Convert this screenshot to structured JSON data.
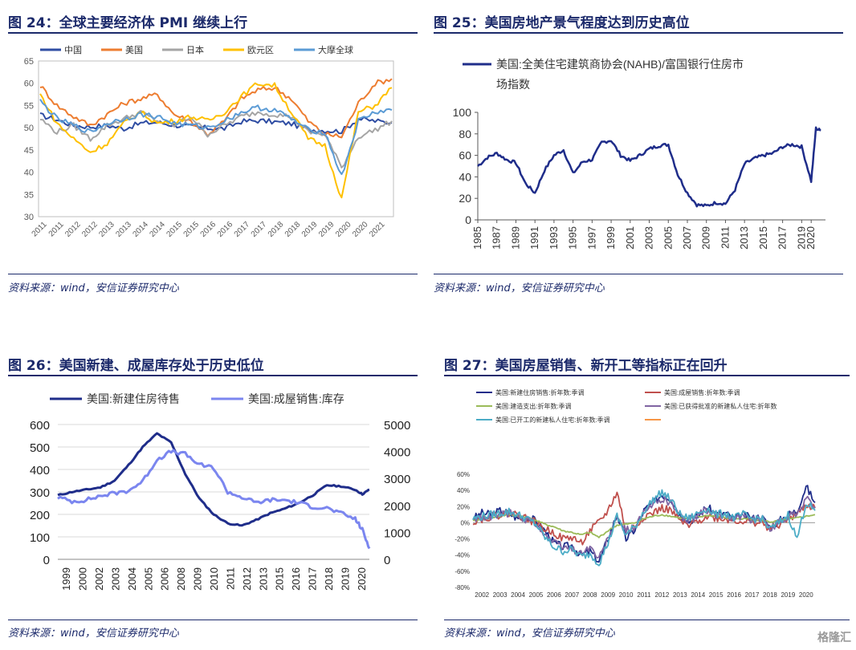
{
  "panels": [
    {
      "id": "fig24",
      "title": "图 24：全球主要经济体 PMI 继续上行",
      "source": "资料来源：wind，安信证券研究中心"
    },
    {
      "id": "fig25",
      "title": "图 25：美国房地产景气程度达到历史高位",
      "source": "资料来源：wind，安信证券研究中心"
    },
    {
      "id": "fig26",
      "title": "图 26：美国新建、成屋库存处于历史低位",
      "source": "资料来源：wind，安信证券研究中心"
    },
    {
      "id": "fig27",
      "title": "图 27：美国房屋销售、新开工等指标正在回升",
      "source": "资料来源：wind，安信证券研究中心"
    }
  ],
  "watermark": "格隆汇",
  "chart_data": [
    {
      "type": "line",
      "ylim": [
        30,
        65
      ],
      "yticks": [
        "65",
        "60",
        "55",
        "50",
        "45",
        "40",
        "35",
        "30"
      ],
      "xticks": [
        "2011",
        "2011",
        "2012",
        "2012",
        "2013",
        "2013",
        "2014",
        "2014",
        "2015",
        "2015",
        "2016",
        "2016",
        "2017",
        "2017",
        "2018",
        "2018",
        "2019",
        "2019",
        "2020",
        "2020",
        "2021"
      ],
      "legend_position": "top",
      "series": [
        {
          "name": "中国",
          "color": "#2f4da3",
          "values": [
            52.8,
            51.8,
            50.5,
            50.2,
            50.5,
            49.8,
            51.0,
            51.2,
            50.6,
            50.2,
            49.9,
            49.8,
            51.4,
            51.6,
            51.3,
            50.9,
            49.6,
            49.4,
            49.2,
            52.0,
            51.5,
            51.1
          ]
        },
        {
          "name": "美国",
          "color": "#ed7d31",
          "values": [
            59.5,
            55.0,
            52.5,
            50.5,
            53.0,
            55.5,
            56.5,
            57.5,
            53.0,
            51.5,
            48.5,
            51.5,
            56.5,
            58.5,
            59.0,
            56.5,
            51.5,
            48.5,
            48.0,
            55.5,
            60.0,
            61.0
          ]
        },
        {
          "name": "日本",
          "color": "#a5a5a5",
          "values": [
            52.0,
            49.0,
            50.5,
            47.5,
            50.5,
            52.0,
            53.5,
            51.5,
            50.5,
            52.5,
            48.5,
            50.5,
            52.5,
            53.5,
            53.0,
            52.5,
            49.0,
            48.5,
            41.0,
            48.0,
            49.5,
            51.5
          ]
        },
        {
          "name": "欧元区",
          "color": "#ffc000",
          "values": [
            57.5,
            51.0,
            47.5,
            44.5,
            46.5,
            51.0,
            53.5,
            51.0,
            51.5,
            52.5,
            51.5,
            53.5,
            57.0,
            60.0,
            59.5,
            53.5,
            47.5,
            46.0,
            34.0,
            53.5,
            55.0,
            59.0
          ]
        },
        {
          "name": "大摩全球",
          "color": "#5b9bd5",
          "values": [
            56.0,
            52.0,
            50.5,
            49.0,
            51.0,
            52.0,
            53.0,
            52.5,
            51.0,
            50.5,
            50.0,
            51.5,
            53.5,
            54.5,
            54.0,
            52.0,
            49.5,
            49.0,
            39.0,
            51.5,
            53.5,
            54.0
          ]
        }
      ]
    },
    {
      "type": "line",
      "ylim": [
        0,
        100
      ],
      "yticks": [
        "100",
        "80",
        "60",
        "40",
        "20",
        "0"
      ],
      "xticks": [
        "1985",
        "1987",
        "1989",
        "1991",
        "1993",
        "1995",
        "1997",
        "1999",
        "2001",
        "2003",
        "2005",
        "2007",
        "2009",
        "2011",
        "2013",
        "2015",
        "2017",
        "2019",
        "2020"
      ],
      "legend_position": "top-left",
      "series": [
        {
          "name": "美国:全美住宅建筑商协会(NAHB)/富国银行住房市场指数",
          "color": "#1f2d8a",
          "x": [
            1985,
            1986,
            1987,
            1988,
            1989,
            1990,
            1991,
            1992,
            1993,
            1994,
            1995,
            1996,
            1997,
            1998,
            1999,
            2000,
            2001,
            2002,
            2003,
            2004,
            2005,
            2006,
            2007,
            2008,
            2009,
            2010,
            2011,
            2012,
            2013,
            2014,
            2015,
            2016,
            2017,
            2018,
            2019,
            2020,
            2020.5,
            2021
          ],
          "values": [
            50,
            58,
            62,
            56,
            53,
            34,
            25,
            46,
            60,
            65,
            43,
            54,
            56,
            72,
            74,
            60,
            55,
            60,
            66,
            69,
            70,
            42,
            25,
            14,
            13,
            16,
            15,
            28,
            52,
            57,
            60,
            62,
            68,
            70,
            68,
            36,
            85,
            83
          ]
        }
      ]
    },
    {
      "type": "line",
      "ylim_left": [
        0,
        600
      ],
      "ylim_right": [
        0,
        5000
      ],
      "yticks_left": [
        "600",
        "500",
        "400",
        "300",
        "200",
        "100",
        "0"
      ],
      "yticks_right": [
        "5000",
        "4000",
        "3000",
        "2000",
        "1000",
        "0"
      ],
      "xticks": [
        "1999",
        "2000",
        "2002",
        "2003",
        "2004",
        "2005",
        "2006",
        "2008",
        "2009",
        "2010",
        "2011",
        "2012",
        "2013",
        "2015",
        "2016",
        "2017",
        "2018",
        "2019",
        "2020"
      ],
      "legend_position": "top",
      "series": [
        {
          "name": "美国:新建住房待售",
          "color": "#1f2d8a",
          "axis": "left",
          "x": [
            1999,
            2000,
            2001,
            2002,
            2003,
            2004,
            2005,
            2006,
            2007,
            2008,
            2009,
            2010,
            2011,
            2012,
            2013,
            2014,
            2015,
            2016,
            2017,
            2018,
            2019,
            2020,
            2020.5,
            2021
          ],
          "values": [
            285,
            300,
            310,
            320,
            350,
            420,
            500,
            560,
            520,
            380,
            270,
            200,
            160,
            150,
            175,
            205,
            225,
            250,
            285,
            330,
            325,
            310,
            290,
            310
          ]
        },
        {
          "name": "美国:成屋销售:库存",
          "color": "#7b86ef",
          "axis": "right",
          "x": [
            1999,
            2000,
            2001,
            2002,
            2003,
            2004,
            2005,
            2006,
            2007,
            2008,
            2009,
            2010,
            2011,
            2012,
            2013,
            2014,
            2015,
            2016,
            2017,
            2018,
            2019,
            2020,
            2020.5,
            2021
          ],
          "values": [
            2300,
            2150,
            2200,
            2350,
            2450,
            2550,
            2900,
            3700,
            4000,
            3900,
            3500,
            3400,
            2500,
            2300,
            2100,
            2200,
            2200,
            2100,
            1950,
            1900,
            1700,
            1500,
            1100,
            400
          ]
        }
      ]
    },
    {
      "type": "line",
      "ylim": [
        -80,
        60
      ],
      "yticks": [
        "60%",
        "40%",
        "20%",
        "0%",
        "-20%",
        "-40%",
        "-60%",
        "-80%"
      ],
      "xticks": [
        "2002",
        "2003",
        "2004",
        "2005",
        "2006",
        "2007",
        "2008",
        "2009",
        "2010",
        "2011",
        "2012",
        "2013",
        "2014",
        "2015",
        "2016",
        "2017",
        "2018",
        "2019",
        "2020"
      ],
      "legend_position": "top",
      "series": [
        {
          "name": "美国:新建住房销售:折年数:季调",
          "color": "#1f2d8a"
        },
        {
          "name": "美国:成屋销售:折年数:季调",
          "color": "#c0504d"
        },
        {
          "name": "美国:建造支出:折年数:季调",
          "color": "#9bbb59"
        },
        {
          "name": "美国:已获得批准的新建私人住宅:折年数",
          "color": "#8064a2"
        },
        {
          "name": "美国:已开工的新建私人住宅:折年数:季调",
          "color": "#4bacc6"
        },
        {
          "name": "",
          "color": "#f79646"
        }
      ],
      "series_values": {
        "x": [
          2002,
          2002.5,
          2003,
          2003.5,
          2004,
          2004.5,
          2005,
          2005.5,
          2006,
          2006.5,
          2007,
          2007.5,
          2008,
          2008.5,
          2009,
          2009.5,
          2010,
          2010.5,
          2011,
          2011.5,
          2012,
          2012.5,
          2013,
          2013.5,
          2014,
          2014.5,
          2015,
          2015.5,
          2016,
          2016.5,
          2017,
          2017.5,
          2018,
          2018.5,
          2019,
          2019.5,
          2020,
          2020.5,
          2021
        ],
        "new_home_sales": [
          5,
          12,
          10,
          15,
          12,
          5,
          8,
          2,
          -10,
          -25,
          -30,
          -28,
          -40,
          -35,
          -48,
          -20,
          10,
          -20,
          -8,
          15,
          25,
          35,
          30,
          10,
          2,
          8,
          20,
          10,
          12,
          5,
          10,
          5,
          8,
          -5,
          2,
          10,
          15,
          45,
          25
        ],
        "existing_home_sales": [
          2,
          5,
          8,
          10,
          12,
          10,
          5,
          0,
          -8,
          -12,
          -20,
          -18,
          -25,
          -10,
          0,
          15,
          38,
          -10,
          -5,
          8,
          12,
          18,
          15,
          2,
          -5,
          3,
          8,
          6,
          5,
          3,
          2,
          1,
          0,
          -8,
          -2,
          5,
          10,
          22,
          18
        ],
        "construction_spending": [
          2,
          4,
          6,
          8,
          10,
          9,
          6,
          3,
          -2,
          -5,
          -10,
          -12,
          -15,
          -12,
          -18,
          -10,
          -3,
          -2,
          0,
          5,
          8,
          10,
          8,
          6,
          5,
          7,
          9,
          8,
          6,
          5,
          5,
          4,
          3,
          1,
          2,
          4,
          6,
          8,
          10
        ],
        "permits": [
          3,
          6,
          8,
          10,
          12,
          8,
          4,
          0,
          -15,
          -25,
          -30,
          -32,
          -38,
          -30,
          -45,
          -20,
          5,
          -10,
          -5,
          12,
          22,
          30,
          25,
          8,
          3,
          10,
          15,
          8,
          10,
          6,
          8,
          4,
          5,
          -6,
          0,
          8,
          12,
          30,
          20
        ],
        "starts": [
          5,
          8,
          10,
          12,
          14,
          10,
          5,
          -2,
          -18,
          -30,
          -35,
          -33,
          -42,
          -38,
          -50,
          -25,
          8,
          -15,
          -5,
          15,
          28,
          38,
          28,
          10,
          5,
          12,
          18,
          10,
          12,
          6,
          10,
          5,
          6,
          -8,
          0,
          10,
          -20,
          25,
          15
        ]
      }
    }
  ]
}
